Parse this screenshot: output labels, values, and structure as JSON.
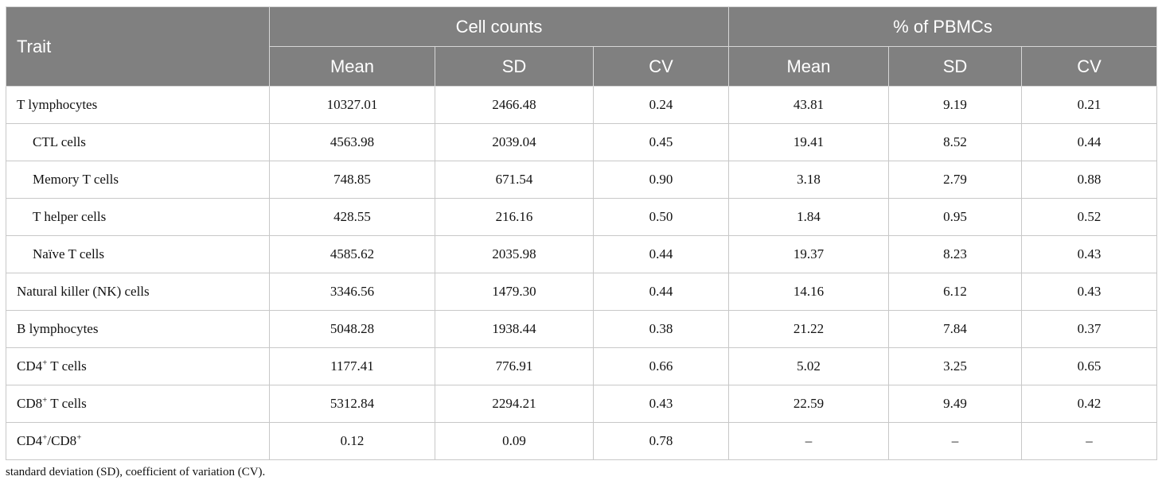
{
  "header": {
    "trait": "Trait",
    "group_cell_counts": "Cell counts",
    "group_pbmc": "% of PBMCs",
    "cols": [
      "Mean",
      "SD",
      "CV",
      "Mean",
      "SD",
      "CV"
    ]
  },
  "rows": [
    {
      "trait": "T lymphocytes",
      "values": [
        "10327.01",
        "2466.48",
        "0.24",
        "43.81",
        "9.19",
        "0.21"
      ]
    },
    {
      "trait": "CTL cells",
      "values": [
        "4563.98",
        "2039.04",
        "0.45",
        "19.41",
        "8.52",
        "0.44"
      ]
    },
    {
      "trait": "Memory T cells",
      "values": [
        "748.85",
        "671.54",
        "0.90",
        "3.18",
        "2.79",
        "0.88"
      ]
    },
    {
      "trait": "T helper cells",
      "values": [
        "428.55",
        "216.16",
        "0.50",
        "1.84",
        "0.95",
        "0.52"
      ]
    },
    {
      "trait": "Naïve T cells",
      "values": [
        "4585.62",
        "2035.98",
        "0.44",
        "19.37",
        "8.23",
        "0.43"
      ]
    },
    {
      "trait": "Natural killer (NK) cells",
      "values": [
        "3346.56",
        "1479.30",
        "0.44",
        "14.16",
        "6.12",
        "0.43"
      ]
    },
    {
      "trait": "B lymphocytes",
      "values": [
        "5048.28",
        "1938.44",
        "0.38",
        "21.22",
        "7.84",
        "0.37"
      ]
    },
    {
      "trait_parts": [
        "CD4",
        "+",
        " T cells"
      ],
      "values": [
        "1177.41",
        "776.91",
        "0.66",
        "5.02",
        "3.25",
        "0.65"
      ]
    },
    {
      "trait_parts": [
        "CD8",
        "+",
        " T cells"
      ],
      "values": [
        "5312.84",
        "2294.21",
        "0.43",
        "22.59",
        "9.49",
        "0.42"
      ]
    },
    {
      "trait_parts": [
        "CD4",
        "+",
        "/CD8",
        "+"
      ],
      "values": [
        "0.12",
        "0.09",
        "0.78",
        "–",
        "–",
        "–"
      ]
    }
  ],
  "footnote": "standard deviation (SD), coefficient of variation (CV)."
}
